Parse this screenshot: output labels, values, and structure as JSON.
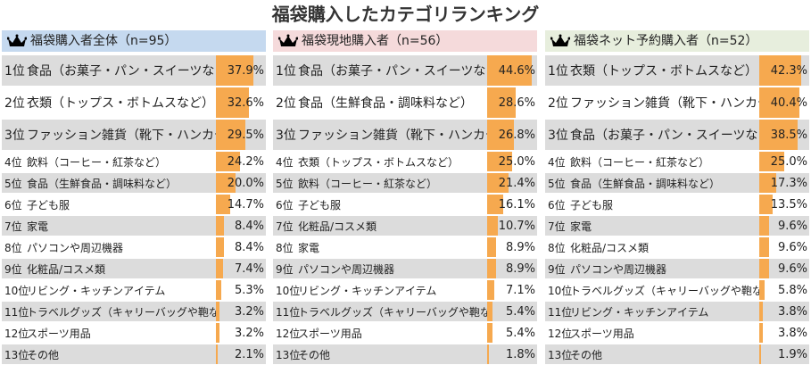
{
  "title": "福袋購入したカテゴリランキング",
  "colors": {
    "bar": "#f6a94f",
    "row_shade": "#dcdcdc",
    "header_blue": "#c5d9ef",
    "header_pink": "#f5dadb",
    "header_green": "#e7eedd",
    "crown": "#000000"
  },
  "chart_data": [
    {
      "type": "bar",
      "title": "福袋購入者全体（n=95）",
      "header_color": "#c5d9ef",
      "unit": "%",
      "ranks": [
        "1位",
        "2位",
        "3位",
        "4位",
        "5位",
        "6位",
        "7位",
        "8位",
        "9位",
        "10位",
        "11位",
        "12位",
        "13位"
      ],
      "categories": [
        "食品（お菓子・パン・スイーツなど）",
        "衣類（トップス・ボトムスなど）",
        "ファッション雑貨（靴下・ハンカチなど）",
        "飲料（コーヒー・紅茶など）",
        "食品（生鮮食品・調味料など）",
        "子ども服",
        "家電",
        "パソコンや周辺機器",
        "化粧品/コスメ類",
        "リビング・キッチンアイテム",
        "トラベルグッズ（キャリーバッグや鞄など）",
        "スポーツ用品",
        "その他"
      ],
      "values": [
        37.9,
        32.6,
        29.5,
        24.2,
        20.0,
        14.7,
        8.4,
        8.4,
        7.4,
        5.3,
        3.2,
        3.2,
        2.1
      ],
      "labels": [
        "37.9%",
        "32.6%",
        "29.5%",
        "24.2%",
        "20.0%",
        "14.7%",
        "8.4%",
        "8.4%",
        "7.4%",
        "5.3%",
        "3.2%",
        "3.2%",
        "2.1%"
      ],
      "xlim": [
        0,
        50
      ]
    },
    {
      "type": "bar",
      "title": "福袋現地購入者（n=56）",
      "header_color": "#f5dadb",
      "unit": "%",
      "ranks": [
        "1位",
        "2位",
        "3位",
        "4位",
        "5位",
        "6位",
        "7位",
        "8位",
        "9位",
        "10位",
        "11位",
        "12位",
        "13位"
      ],
      "categories": [
        "食品（お菓子・パン・スイーツなど）",
        "食品（生鮮食品・調味料など）",
        "ファッション雑貨（靴下・ハンカチなど）",
        "衣類（トップス・ボトムスなど）",
        "飲料（コーヒー・紅茶など）",
        "子ども服",
        "化粧品/コスメ類",
        "家電",
        "パソコンや周辺機器",
        "リビング・キッチンアイテム",
        "トラベルグッズ（キャリーバッグや鞄など）",
        "スポーツ用品",
        "その他"
      ],
      "values": [
        44.6,
        28.6,
        26.8,
        25.0,
        21.4,
        16.1,
        10.7,
        8.9,
        8.9,
        7.1,
        5.4,
        5.4,
        1.8
      ],
      "labels": [
        "44.6%",
        "28.6%",
        "26.8%",
        "25.0%",
        "21.4%",
        "16.1%",
        "10.7%",
        "8.9%",
        "8.9%",
        "7.1%",
        "5.4%",
        "5.4%",
        "1.8%"
      ],
      "xlim": [
        0,
        50
      ]
    },
    {
      "type": "bar",
      "title": "福袋ネット予約購入者（n=52）",
      "header_color": "#e7eedd",
      "unit": "%",
      "ranks": [
        "1位",
        "2位",
        "3位",
        "4位",
        "5位",
        "6位",
        "7位",
        "8位",
        "9位",
        "10位",
        "11位",
        "12位",
        "13位"
      ],
      "categories": [
        "衣類（トップス・ボトムスなど）",
        "ファッション雑貨（靴下・ハンカチなど）",
        "食品（お菓子・パン・スイーツなど）",
        "飲料（コーヒー・紅茶など）",
        "食品（生鮮食品・調味料など）",
        "子ども服",
        "家電",
        "化粧品/コスメ類",
        "パソコンや周辺機器",
        "トラベルグッズ（キャリーバッグや鞄など）",
        "リビング・キッチンアイテム",
        "スポーツ用品",
        "その他"
      ],
      "values": [
        42.3,
        40.4,
        38.5,
        25.0,
        17.3,
        13.5,
        9.6,
        9.6,
        9.6,
        5.8,
        3.8,
        3.8,
        1.9
      ],
      "labels": [
        "42.3%",
        "40.4%",
        "38.5%",
        "25.0%",
        "17.3%",
        "13.5%",
        "9.6%",
        "9.6%",
        "9.6%",
        "5.8%",
        "3.8%",
        "3.8%",
        "1.9%"
      ],
      "xlim": [
        0,
        50
      ]
    }
  ]
}
